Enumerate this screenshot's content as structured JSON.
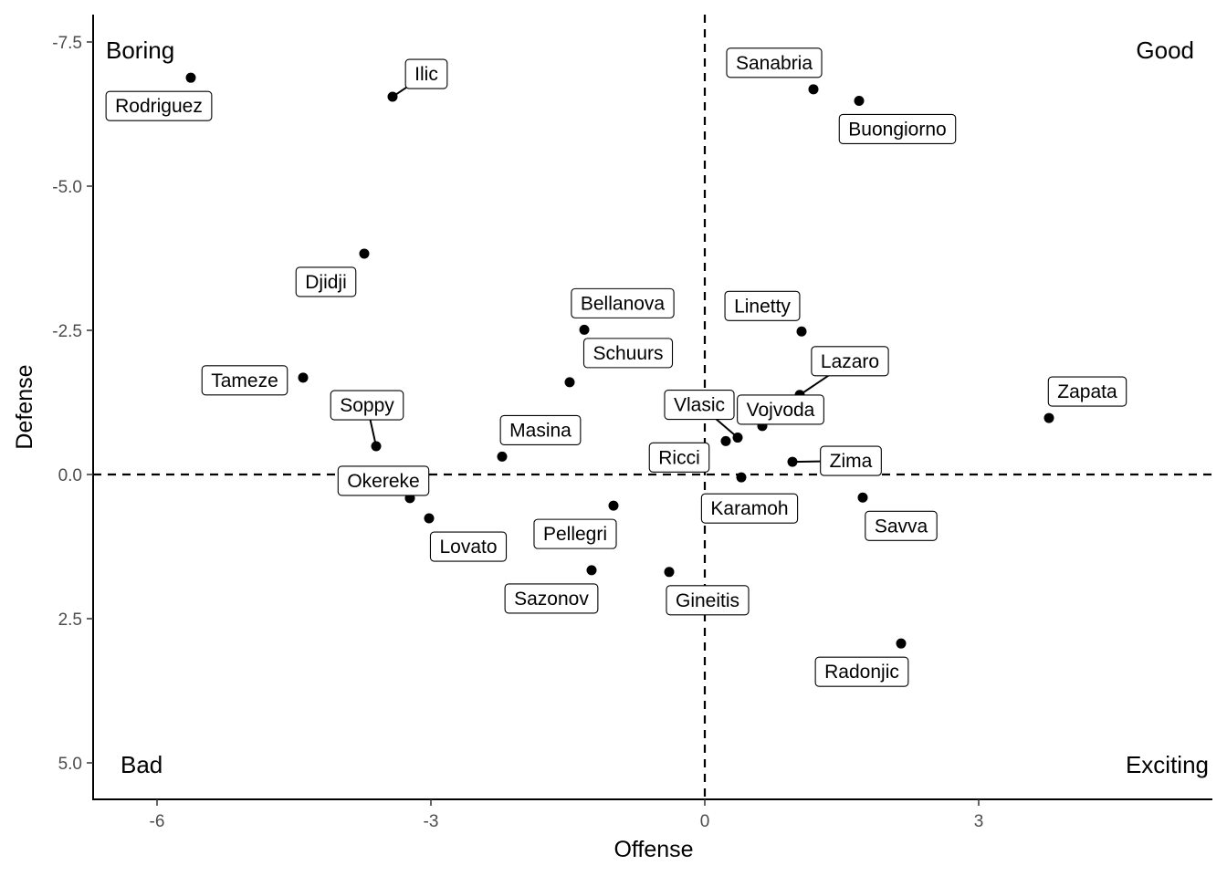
{
  "chart_data": {
    "type": "scatter",
    "xlabel": "Offense",
    "ylabel": "Defense",
    "xlim": [
      -6.7,
      5.55
    ],
    "ylim": [
      -7.85,
      5.6
    ],
    "y_reversed": true,
    "x_ticks": [
      -6,
      -3,
      0,
      3
    ],
    "x_tick_labels": [
      "-6",
      "-3",
      "0",
      "3"
    ],
    "y_ticks": [
      -7.5,
      -5.0,
      -2.5,
      0.0,
      2.5,
      5.0
    ],
    "y_tick_labels": [
      "-7.5",
      "-5.0",
      "-2.5",
      "0.0",
      "2.5",
      "5.0"
    ],
    "reference_lines": {
      "x": 0,
      "y": 0,
      "style": "dashed"
    },
    "grid": false,
    "legend": "none",
    "quadrant_labels": {
      "top_left": "Boring",
      "top_right": "Good",
      "bottom_left": "Bad",
      "bottom_right": "Exciting"
    },
    "points": [
      {
        "name": "Rodriguez",
        "x": -5.63,
        "y": -6.88
      },
      {
        "name": "Ilic",
        "x": -3.42,
        "y": -6.55
      },
      {
        "name": "Sanabria",
        "x": 1.19,
        "y": -6.68
      },
      {
        "name": "Buongiorno",
        "x": 1.69,
        "y": -6.48
      },
      {
        "name": "Djidji",
        "x": -3.73,
        "y": -3.83
      },
      {
        "name": "Bellanova",
        "x": -1.32,
        "y": -2.51
      },
      {
        "name": "Linetty",
        "x": 1.06,
        "y": -2.48
      },
      {
        "name": "Schuurs",
        "x": -1.48,
        "y": -1.6
      },
      {
        "name": "Tameze",
        "x": -4.4,
        "y": -1.68
      },
      {
        "name": "Lazaro",
        "x": 1.04,
        "y": -1.38
      },
      {
        "name": "Zapata",
        "x": 3.77,
        "y": -0.98
      },
      {
        "name": "Vlasic",
        "x": 0.36,
        "y": -0.64
      },
      {
        "name": "Vojvoda",
        "x": 0.63,
        "y": -0.84
      },
      {
        "name": "Ricci",
        "x": 0.23,
        "y": -0.58
      },
      {
        "name": "Masina",
        "x": -2.22,
        "y": -0.31
      },
      {
        "name": "Soppy",
        "x": -3.6,
        "y": -0.49
      },
      {
        "name": "Zima",
        "x": 0.96,
        "y": -0.22
      },
      {
        "name": "Karamoh",
        "x": 0.4,
        "y": 0.05
      },
      {
        "name": "Okereke",
        "x": -3.23,
        "y": 0.41
      },
      {
        "name": "Savva",
        "x": 1.73,
        "y": 0.4
      },
      {
        "name": "Pellegri",
        "x": -1.0,
        "y": 0.54
      },
      {
        "name": "Lovato",
        "x": -3.02,
        "y": 0.76
      },
      {
        "name": "Sazonov",
        "x": -1.24,
        "y": 1.66
      },
      {
        "name": "Gineitis",
        "x": -0.39,
        "y": 1.69
      },
      {
        "name": "Radonjic",
        "x": 2.15,
        "y": 2.93
      }
    ]
  }
}
